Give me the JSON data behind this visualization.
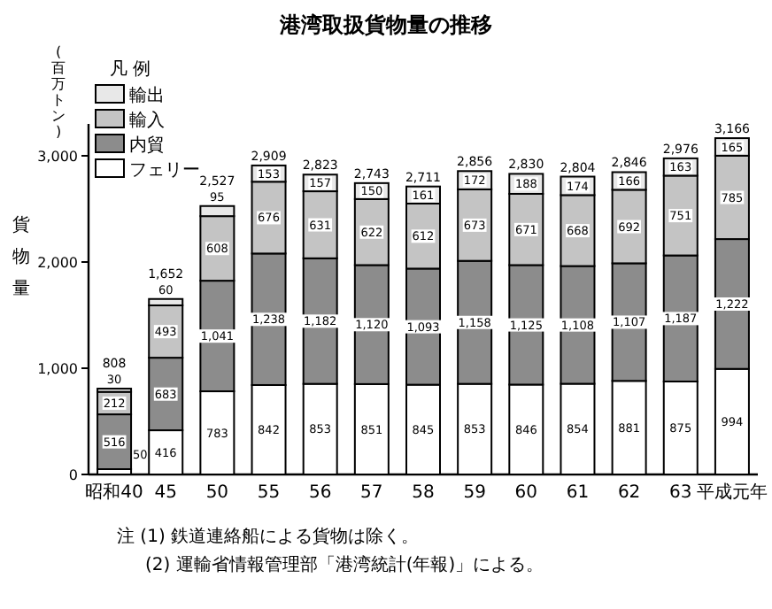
{
  "chart_data": {
    "type": "bar",
    "stacked": true,
    "title": "港湾取扱貨物量の推移",
    "ylabel": "貨物量",
    "legend_title": "凡 例",
    "legend": "top left",
    "categories": [
      "昭和40",
      "45",
      "50",
      "55",
      "56",
      "57",
      "58",
      "59",
      "60",
      "61",
      "62",
      "63",
      "平成元年"
    ],
    "series": [
      {
        "name": "フェリー",
        "color": "#ffffff",
        "values": [
          50,
          416,
          783,
          842,
          853,
          851,
          845,
          853,
          846,
          854,
          881,
          875,
          994
        ],
        "value_labels": [
          "50",
          "416",
          "783",
          "842",
          "853",
          "851",
          "845",
          "853",
          "846",
          "854",
          "881",
          "875",
          "994"
        ]
      },
      {
        "name": "内貿",
        "color": "#8c8c8c",
        "values": [
          516,
          683,
          1041,
          1238,
          1182,
          1120,
          1093,
          1158,
          1125,
          1108,
          1107,
          1187,
          1222
        ],
        "value_labels": [
          "516",
          "683",
          "1,041",
          "1,238",
          "1,182",
          "1,120",
          "1,093",
          "1,158",
          "1,125",
          "1,108",
          "1,107",
          "1,187",
          "1,222"
        ]
      },
      {
        "name": "輸入",
        "color": "#c4c4c4",
        "values": [
          212,
          493,
          608,
          676,
          631,
          622,
          612,
          673,
          671,
          668,
          692,
          751,
          785
        ],
        "value_labels": [
          "212",
          "493",
          "608",
          "676",
          "631",
          "622",
          "612",
          "673",
          "671",
          "668",
          "692",
          "751",
          "785"
        ]
      },
      {
        "name": "輸出",
        "color": "#e8e8e8",
        "values": [
          30,
          60,
          95,
          153,
          157,
          150,
          161,
          172,
          188,
          174,
          166,
          163,
          165
        ],
        "value_labels": [
          "30",
          "60",
          "95",
          "153",
          "157",
          "150",
          "161",
          "172",
          "188",
          "174",
          "166",
          "163",
          "165"
        ]
      }
    ],
    "totals": [
      "808",
      "1,652",
      "2,527",
      "2,909",
      "2,823",
      "2,743",
      "2,711",
      "2,856",
      "2,830",
      "2,804",
      "2,846",
      "2,976",
      "3,166"
    ],
    "ylim": [
      0,
      3300
    ],
    "yticks": [
      0,
      {
        "value": 1000,
        "label": "1,000"
      },
      {
        "value": 2000,
        "label": "2,000"
      },
      {
        "value": 3000,
        "label": "3,000"
      }
    ],
    "grid": false,
    "annotations": [
      "(百万トン)",
      "注 (1) 鉄道連絡船による貨物は除く。",
      "(2) 運輸省情報管理部「港湾統計(年報)」による。"
    ]
  }
}
